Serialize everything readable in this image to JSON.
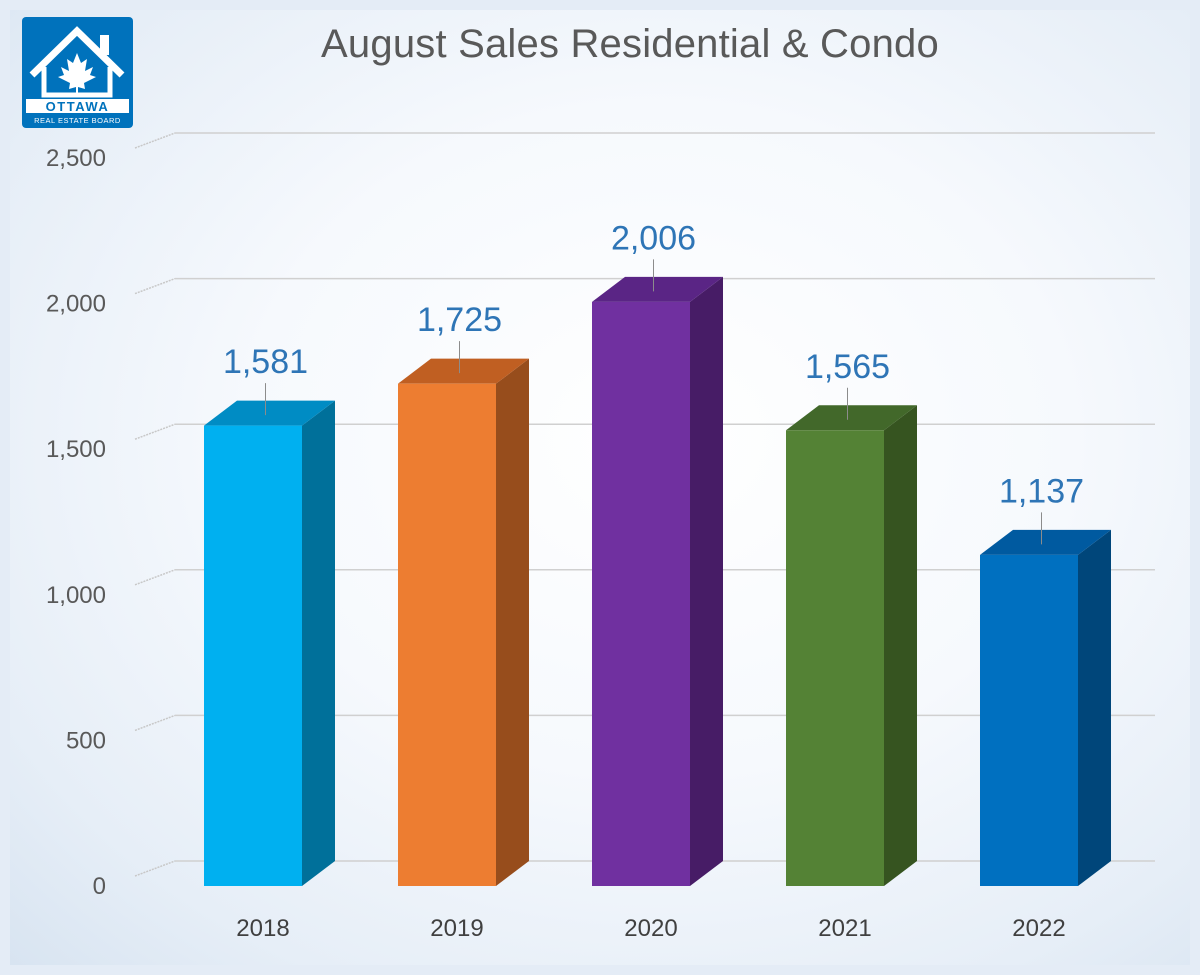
{
  "logo": {
    "text_main": "OTTAWA",
    "text_sub": "REAL ESTATE BOARD",
    "brand_color": "#0072bc"
  },
  "chart_data": {
    "type": "bar",
    "title": "August Sales Residential & Condo",
    "xlabel": "",
    "ylabel": "",
    "categories": [
      "2018",
      "2019",
      "2020",
      "2021",
      "2022"
    ],
    "values": [
      1581,
      1725,
      2006,
      1565,
      1137
    ],
    "value_labels": [
      "1,581",
      "1,725",
      "2,006",
      "1,565",
      "1,137"
    ],
    "ylim": [
      0,
      2500
    ],
    "yticks": [
      0,
      500,
      1000,
      1500,
      2000,
      2500
    ],
    "ytick_labels": [
      "0",
      "500",
      "1,000",
      "1,500",
      "2,000",
      "2,500"
    ],
    "bar_colors": [
      "#00b0f0",
      "#ed7d31",
      "#7030a0",
      "#548235",
      "#0070c0"
    ],
    "bar_side_colors": [
      "#00709a",
      "#974d1c",
      "#471c66",
      "#365420",
      "#00467a"
    ],
    "bar_top_colors": [
      "#008cc4",
      "#c05f22",
      "#5a2585",
      "#42682a",
      "#005aa0"
    ],
    "label_color": "#2e75b6",
    "grid": true,
    "style": "3d-column"
  }
}
